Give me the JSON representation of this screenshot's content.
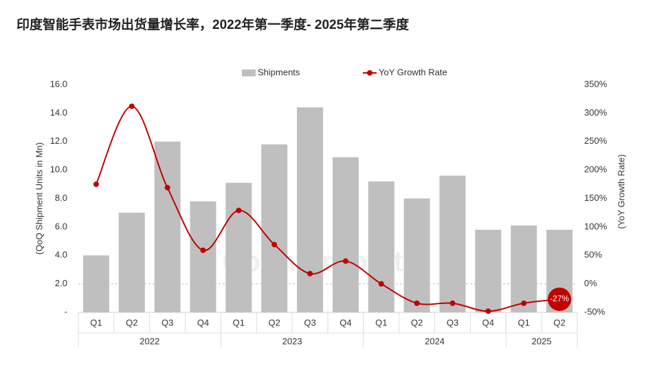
{
  "chart_data": {
    "type": "bar",
    "title": "印度智能手表市场出货量增长率，2022年第一季度- 2025年第二季度",
    "watermark": "Counterpoint",
    "y_label": "(QoQ Shipment Units in Mn)",
    "y2_label": "(YoY Growth Rate)",
    "categories": [
      "Q1",
      "Q2",
      "Q3",
      "Q4",
      "Q1",
      "Q2",
      "Q3",
      "Q4",
      "Q1",
      "Q2",
      "Q3",
      "Q4",
      "Q1",
      "Q2"
    ],
    "category_groups": [
      {
        "name": "2022",
        "span": 4
      },
      {
        "name": "2023",
        "span": 4
      },
      {
        "name": "2024",
        "span": 4
      },
      {
        "name": "2025",
        "span": 2
      }
    ],
    "series": [
      {
        "name": "Shipments",
        "type": "bar",
        "color": "#bfbfbf",
        "values": [
          4.0,
          7.0,
          12.0,
          7.8,
          9.1,
          11.8,
          14.4,
          10.9,
          9.2,
          8.0,
          9.6,
          5.8,
          6.1,
          5.8
        ]
      },
      {
        "name": "YoY Growth Rate",
        "type": "line",
        "axis": "y2",
        "color": "#c00000",
        "values": [
          175,
          312,
          169,
          59,
          129,
          69,
          18,
          40,
          0,
          -34,
          -34,
          -48,
          -34,
          -27
        ],
        "value_labels": [
          null,
          null,
          null,
          null,
          null,
          null,
          null,
          null,
          null,
          null,
          null,
          null,
          null,
          "-27%"
        ]
      }
    ],
    "ylim": [
      0,
      16
    ],
    "yticks": [
      {
        "value": 0,
        "label": "-"
      },
      {
        "value": 2,
        "label": "2.0"
      },
      {
        "value": 4,
        "label": "4.0"
      },
      {
        "value": 6,
        "label": "6.0"
      },
      {
        "value": 8,
        "label": "8.0"
      },
      {
        "value": 10,
        "label": "10.0"
      },
      {
        "value": 12,
        "label": "12.0"
      },
      {
        "value": 14,
        "label": "14.0"
      },
      {
        "value": 16,
        "label": "16.0"
      }
    ],
    "y2lim": [
      -50,
      350
    ],
    "y2ticks": [
      {
        "value": -50,
        "label": "-50%"
      },
      {
        "value": 0,
        "label": "0%"
      },
      {
        "value": 50,
        "label": "50%"
      },
      {
        "value": 100,
        "label": "100%"
      },
      {
        "value": 150,
        "label": "150%"
      },
      {
        "value": 200,
        "label": "200%"
      },
      {
        "value": 250,
        "label": "250%"
      },
      {
        "value": 300,
        "label": "300%"
      },
      {
        "value": 350,
        "label": "350%"
      }
    ],
    "y2_zero_line": true,
    "grid": false,
    "legend": "top"
  }
}
